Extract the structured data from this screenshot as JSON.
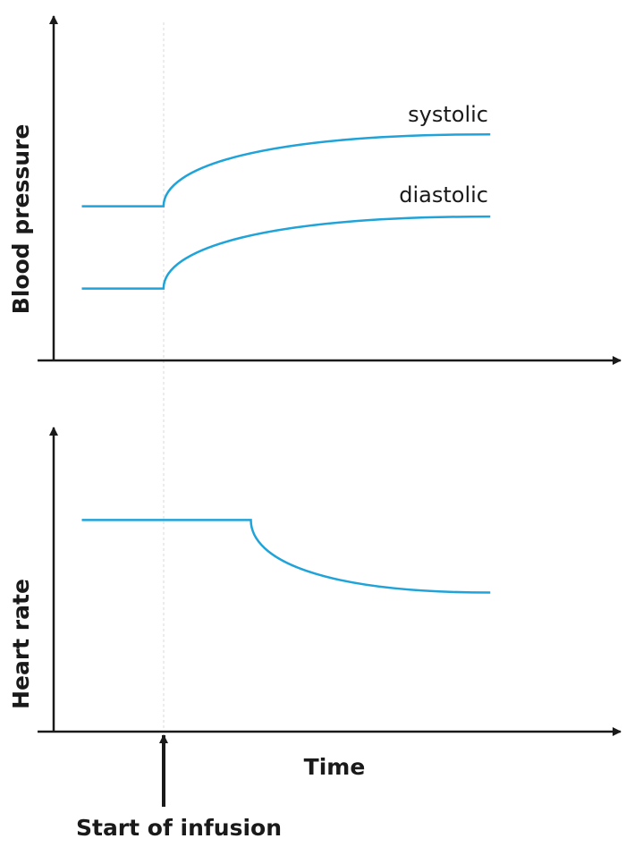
{
  "chart_data": [
    {
      "type": "line",
      "title": "",
      "xlabel": "",
      "ylabel": "Blood pressure",
      "xlim": [
        0,
        100
      ],
      "ylim": [
        0,
        100
      ],
      "grid": false,
      "infusion_time": 19.5,
      "series": [
        {
          "name": "systolic",
          "start_x": 5,
          "baseline": 45,
          "change_x": 19.5,
          "end_x": 77.5,
          "final": 66,
          "color": "#1fa3d8"
        },
        {
          "name": "diastolic",
          "start_x": 5,
          "baseline": 21,
          "change_x": 19.5,
          "end_x": 77.5,
          "final": 42,
          "color": "#1fa3d8"
        }
      ]
    },
    {
      "type": "line",
      "title": "",
      "xlabel": "Time",
      "ylabel": "Heart rate",
      "xlim": [
        0,
        100
      ],
      "ylim": [
        0,
        100
      ],
      "grid": false,
      "infusion_time": 19.5,
      "series": [
        {
          "name": "heart rate",
          "start_x": 5,
          "baseline": 70,
          "change_x": 35,
          "end_x": 77.5,
          "final": 46,
          "color": "#1fa3d8"
        }
      ]
    }
  ],
  "annotation": "Start of infusion"
}
